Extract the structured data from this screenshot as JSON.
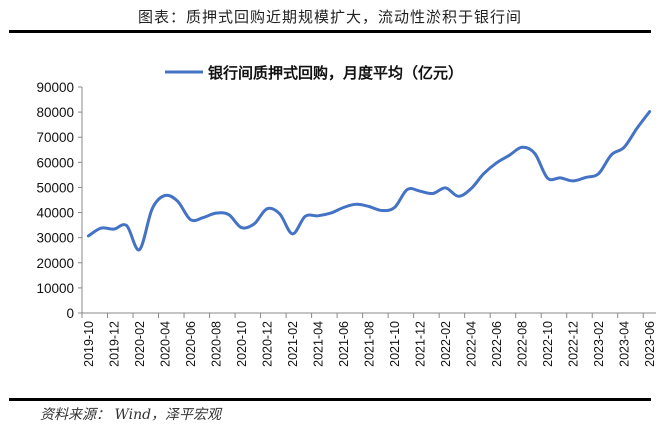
{
  "header": {
    "title": "图表：质押式回购近期规模扩大，流动性淤积于银行间"
  },
  "footer": {
    "source": "资料来源：  Wind，泽平宏观"
  },
  "colors": {
    "line": "#4472C4",
    "axis": "#888888",
    "rule": "#000000"
  },
  "chart_data": {
    "type": "line",
    "title": "",
    "xlabel": "",
    "ylabel": "",
    "ylim": [
      0,
      90000
    ],
    "yticks": [
      0,
      10000,
      20000,
      30000,
      40000,
      50000,
      60000,
      70000,
      80000,
      90000
    ],
    "grid": false,
    "legend_position": "top",
    "x_tick_labels": [
      "2019-10",
      "2019-12",
      "2020-02",
      "2020-04",
      "2020-06",
      "2020-08",
      "2020-10",
      "2020-12",
      "2021-02",
      "2021-04",
      "2021-06",
      "2021-08",
      "2021-10",
      "2021-12",
      "2022-02",
      "2022-04",
      "2022-06",
      "2022-08",
      "2022-10",
      "2022-12",
      "2023-02",
      "2023-04",
      "2023-06"
    ],
    "x": [
      "2019-10",
      "2019-11",
      "2019-12",
      "2020-01",
      "2020-02",
      "2020-03",
      "2020-04",
      "2020-05",
      "2020-06",
      "2020-07",
      "2020-08",
      "2020-09",
      "2020-10",
      "2020-11",
      "2020-12",
      "2021-01",
      "2021-02",
      "2021-03",
      "2021-04",
      "2021-05",
      "2021-06",
      "2021-07",
      "2021-08",
      "2021-09",
      "2021-10",
      "2021-11",
      "2021-12",
      "2022-01",
      "2022-02",
      "2022-03",
      "2022-04",
      "2022-05",
      "2022-06",
      "2022-07",
      "2022-08",
      "2022-09",
      "2022-10",
      "2022-11",
      "2022-12",
      "2023-01",
      "2023-02",
      "2023-03",
      "2023-04",
      "2023-05",
      "2023-06"
    ],
    "series": [
      {
        "name": "银行间质押式回购，月度平均（亿元）",
        "values": [
          30700,
          33800,
          33400,
          34800,
          25200,
          41500,
          46800,
          44500,
          37200,
          38000,
          39800,
          39200,
          34000,
          35500,
          41500,
          39500,
          31500,
          38500,
          38700,
          39800,
          42000,
          43300,
          42400,
          40800,
          42000,
          49200,
          48500,
          47600,
          49800,
          46500,
          49500,
          55500,
          59800,
          62800,
          66000,
          63500,
          53700,
          53800,
          52600,
          54000,
          55500,
          63000,
          66000,
          73500,
          80200
        ]
      }
    ]
  }
}
